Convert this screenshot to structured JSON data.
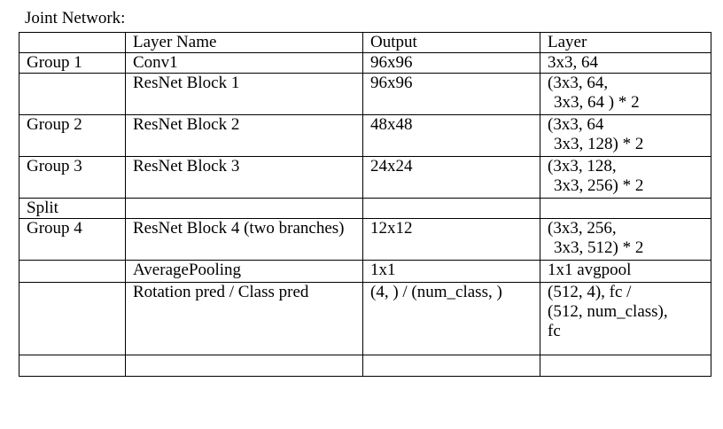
{
  "title": "Joint Network:",
  "header": {
    "group": "",
    "layer_name": "Layer Name",
    "output": "Output",
    "layer": "Layer"
  },
  "rows": [
    {
      "group": "Group 1",
      "layer_name": [
        "Conv1"
      ],
      "output": "96x96",
      "layer": [
        "3x3, 64"
      ]
    },
    {
      "group": "",
      "layer_name": [
        "ResNet Block 1"
      ],
      "output": "96x96",
      "layer": [
        "(3x3, 64,",
        "3x3, 64 ) * 2"
      ]
    },
    {
      "group": "Group 2",
      "layer_name": [
        "ResNet Block 2"
      ],
      "output": "48x48",
      "layer": [
        "(3x3, 64",
        "3x3, 128) * 2"
      ]
    },
    {
      "group": "Group 3",
      "layer_name": [
        "ResNet Block 3"
      ],
      "output": "24x24",
      "layer": [
        "(3x3, 128,",
        "3x3, 256) * 2"
      ]
    },
    {
      "group": "Split",
      "layer_name": [
        ""
      ],
      "output": "",
      "layer": [
        ""
      ]
    },
    {
      "group": "Group 4",
      "layer_name": [
        "ResNet Block 4 (two branches)"
      ],
      "output": "12x12",
      "layer": [
        "(3x3, 256,",
        "3x3, 512) * 2"
      ]
    },
    {
      "group": "",
      "layer_name": [
        "AveragePooling"
      ],
      "output": "1x1",
      "layer": [
        "1x1 avgpool"
      ]
    },
    {
      "group": "",
      "layer_name": [
        "Rotation pred / Class pred"
      ],
      "output": "(4, ) / (num_class, )",
      "layer": [
        "(512, 4), fc /",
        "(512, num_class),",
        "fc"
      ]
    },
    {
      "group": "",
      "layer_name": [
        ""
      ],
      "output": "",
      "layer": [
        ""
      ]
    }
  ]
}
